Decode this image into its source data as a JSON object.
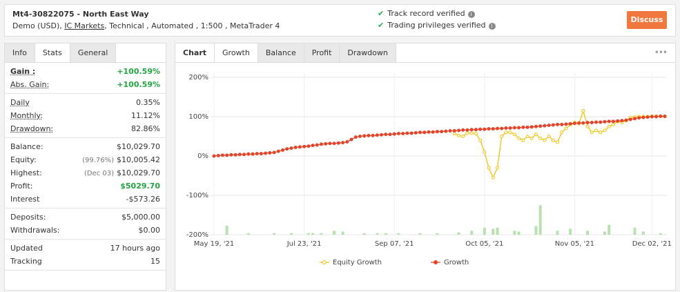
{
  "header": {
    "title": "Mt4-30822075 - North East Way",
    "subtitle_start": "Demo (USD),",
    "broker": "IC Markets",
    "subtitle_end": ", Technical , Automated , 1:500 , MetaTrader 4",
    "verified": [
      "Track record verified",
      "Trading privileges verified"
    ],
    "button": "Discuss"
  },
  "stats": {
    "tabs": [
      "Info",
      "Stats",
      "General"
    ],
    "groups": [
      [
        {
          "label": "Gain :",
          "value": "+100.59%"
        },
        {
          "label": "Abs. Gain:",
          "value": "+100.59%"
        }
      ],
      [
        {
          "label": "Daily",
          "value": "0.35%"
        },
        {
          "label": "Monthly:",
          "value": "11.12%"
        },
        {
          "label": "Drawdown:",
          "value": "82.86%"
        }
      ],
      [
        {
          "label": "Balance:",
          "value": "$10,029.70"
        },
        {
          "label": "Equity:",
          "note": "(99.76%)",
          "value": "$10,005.42"
        },
        {
          "label": "Highest:",
          "note": "(Dec 03)",
          "value": "$10,029.70"
        },
        {
          "label": "Profit:",
          "value": "$5029.70"
        },
        {
          "label": "Interest",
          "value": "-$573.26"
        }
      ],
      [
        {
          "label": "Deposits:",
          "value": "$5,000.00"
        },
        {
          "label": "Withdrawals:",
          "value": "$0.00"
        }
      ],
      [
        {
          "label": "Updated",
          "value": "17 hours ago"
        },
        {
          "label": "Tracking",
          "value": "15"
        }
      ]
    ]
  },
  "chart_tabs": [
    "Chart",
    "Growth",
    "Balance",
    "Profit",
    "Drawdown"
  ],
  "chart_data": {
    "type": "line",
    "categories": [
      "May 19, '21",
      null,
      null,
      null,
      null,
      null,
      null,
      null,
      null,
      null,
      null,
      null,
      null,
      null,
      null,
      null,
      null,
      null,
      null,
      null,
      null,
      "Jul 23, '21",
      null,
      null,
      null,
      null,
      null,
      null,
      null,
      null,
      null,
      null,
      null,
      null,
      null,
      null,
      null,
      null,
      null,
      null,
      null,
      null,
      "Sep 07, '21",
      null,
      null,
      null,
      null,
      null,
      null,
      null,
      null,
      null,
      null,
      null,
      null,
      null,
      null,
      null,
      null,
      null,
      null,
      null,
      null,
      "Oct 05, '21",
      null,
      null,
      null,
      null,
      null,
      null,
      null,
      null,
      null,
      null,
      null,
      null,
      null,
      null,
      null,
      null,
      null,
      null,
      null,
      null,
      "Nov 05, '21",
      null,
      null,
      null,
      null,
      null,
      null,
      null,
      null,
      null,
      null,
      null,
      null,
      null,
      null,
      null,
      null,
      null,
      "Dec 02, '21",
      null,
      null,
      null
    ],
    "ylim": [
      -200,
      200
    ],
    "yticks": [
      {
        "value": -200,
        "label": "-200%"
      },
      {
        "value": -100,
        "label": "-100%"
      },
      {
        "value": 0,
        "label": "0%"
      },
      {
        "value": 100,
        "label": "100%"
      },
      {
        "value": 200,
        "label": "200%"
      }
    ],
    "grid": true,
    "series": [
      {
        "name": "Equity Growth",
        "color": "#f2c10c",
        "values": [
          null,
          null,
          null,
          null,
          null,
          null,
          null,
          null,
          null,
          null,
          null,
          null,
          null,
          null,
          null,
          null,
          null,
          null,
          null,
          null,
          null,
          null,
          null,
          null,
          null,
          null,
          null,
          null,
          null,
          null,
          null,
          null,
          null,
          null,
          null,
          null,
          null,
          null,
          null,
          null,
          null,
          null,
          null,
          null,
          null,
          null,
          null,
          null,
          null,
          null,
          null,
          null,
          null,
          null,
          null,
          null,
          57,
          52,
          50,
          58,
          58,
          57,
          40,
          10,
          -30,
          -55,
          -30,
          50,
          60,
          60,
          55,
          45,
          40,
          50,
          45,
          55,
          45,
          40,
          50,
          40,
          35,
          60,
          70,
          80,
          85,
          82,
          115,
          75,
          60,
          65,
          60,
          65,
          75,
          80,
          88,
          85,
          90,
          98,
          99,
          100,
          100,
          100,
          101,
          101,
          101,
          100
        ]
      },
      {
        "name": "Growth",
        "color": "#e4452a",
        "values": [
          0,
          1,
          2,
          2,
          3,
          3,
          4,
          4,
          5,
          5,
          6,
          6,
          7,
          8,
          9,
          12,
          15,
          18,
          20,
          22,
          23,
          24,
          25,
          27,
          28,
          30,
          31,
          32,
          32,
          33,
          34,
          36,
          42,
          48,
          50,
          51,
          52,
          52,
          53,
          54,
          55,
          55,
          56,
          57,
          57,
          58,
          58,
          59,
          60,
          60,
          61,
          61,
          62,
          62,
          63,
          64,
          64,
          65,
          66,
          66,
          67,
          67,
          68,
          68,
          69,
          69,
          70,
          70,
          71,
          71,
          72,
          72,
          73,
          73,
          74,
          75,
          76,
          77,
          78,
          79,
          80,
          80,
          81,
          82,
          83,
          84,
          84,
          85,
          85,
          86,
          86,
          87,
          88,
          88,
          89,
          90,
          91,
          93,
          95,
          97,
          98,
          99,
          100,
          100,
          101,
          101
        ]
      }
    ],
    "bars": {
      "color": "#b9e0b0",
      "values": [
        null,
        null,
        null,
        -177,
        null,
        null,
        null,
        null,
        -196,
        null,
        null,
        null,
        null,
        null,
        -196,
        null,
        null,
        null,
        -196,
        null,
        null,
        null,
        -196,
        -196,
        null,
        -196,
        null,
        null,
        -190,
        null,
        -192,
        null,
        null,
        null,
        null,
        -196,
        null,
        null,
        -196,
        null,
        -196,
        null,
        null,
        -196,
        null,
        null,
        null,
        null,
        -196,
        null,
        null,
        null,
        -196,
        null,
        null,
        null,
        null,
        -194,
        null,
        null,
        -190,
        null,
        null,
        -182,
        null,
        -185,
        -182,
        null,
        null,
        null,
        -190,
        -192,
        null,
        null,
        null,
        -178,
        -125,
        null,
        null,
        null,
        -190,
        null,
        null,
        -185,
        null,
        null,
        null,
        -190,
        null,
        null,
        null,
        -192,
        -175,
        null,
        null,
        null,
        null,
        null,
        -182,
        null,
        -192,
        null,
        null,
        null,
        -196,
        null
      ]
    }
  }
}
